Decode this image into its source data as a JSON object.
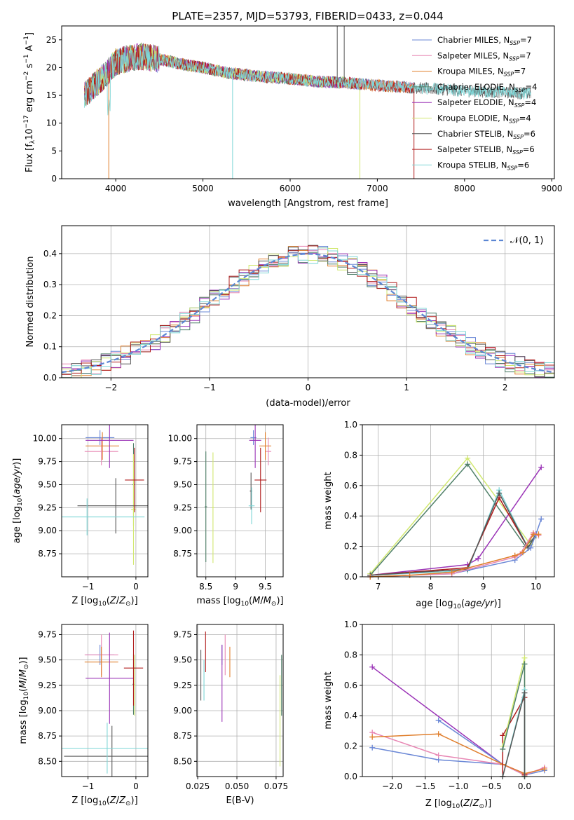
{
  "figure_title": "PLATE=2357, MJD=53793, FIBERID=0433, z=0.044",
  "colors": {
    "Chabrier MILES": "#6a87d6",
    "Salpeter MILES": "#e887b4",
    "Kroupa MILES": "#e07f2d",
    "Chabrier ELODIE": "#4f7f68",
    "Salpeter ELODIE": "#9b34b7",
    "Kroupa ELODIE": "#d1e870",
    "Chabrier STELIB": "#555555",
    "Salpeter STELIB": "#b01c1c",
    "Kroupa STELIB": "#7ed6d6",
    "normal": "#5b86d3"
  },
  "chart_data": [
    {
      "id": "spectrum",
      "type": "line",
      "title": "PLATE=2357, MJD=53793, FIBERID=0433, z=0.044",
      "xlabel": "wavelength [Angstrom, rest frame]",
      "ylabel": "Flux [f_λ 10^-17 erg cm^-2 s^-1 A^-1]",
      "xlim": [
        3380,
        9030
      ],
      "ylim": [
        0,
        27.5
      ],
      "xticks": [
        4000,
        5000,
        6000,
        7000,
        8000,
        9000
      ],
      "yticks": [
        0,
        5,
        10,
        15,
        20,
        25
      ],
      "grid": false,
      "legend_position": "upper right",
      "series": [
        {
          "name": "Chabrier MILES",
          "nssp": "7",
          "range": [
            3640,
            7420
          ]
        },
        {
          "name": "Salpeter MILES",
          "nssp": "7",
          "range": [
            3640,
            7420
          ]
        },
        {
          "name": "Kroupa MILES",
          "nssp": "7",
          "range": [
            3640,
            7420
          ]
        },
        {
          "name": "Chabrier ELODIE",
          "nssp": "4",
          "range": [
            3640,
            6800
          ]
        },
        {
          "name": "Salpeter ELODIE",
          "nssp": "4",
          "range": [
            3640,
            6800
          ]
        },
        {
          "name": "Kroupa ELODIE",
          "nssp": "4",
          "range": [
            3640,
            6800
          ]
        },
        {
          "name": "Chabrier STELIB",
          "nssp": "6",
          "range": [
            3640,
            8760
          ]
        },
        {
          "name": "Salpeter STELIB",
          "nssp": "6",
          "range": [
            3640,
            7420
          ]
        },
        {
          "name": "Kroupa STELIB",
          "nssp": "6",
          "range": [
            3640,
            8760
          ]
        }
      ],
      "continuum": {
        "x": [
          3640,
          3700,
          3800,
          3900,
          4000,
          4100,
          4300,
          4500,
          4800,
          5000,
          5300,
          5600,
          6000,
          6300,
          6600,
          7000,
          7500,
          8000,
          8500,
          8760
        ],
        "y": [
          15,
          16,
          17.5,
          19,
          21,
          21.5,
          22,
          21.5,
          20.5,
          20,
          19,
          18.5,
          18,
          17.5,
          17.3,
          16.8,
          16.3,
          15.8,
          15.5,
          15.3
        ]
      }
    },
    {
      "id": "residuals",
      "type": "histogram",
      "xlabel": "(data-model)/error",
      "ylabel": "Normed distribution",
      "xlim": [
        -2.5,
        2.5
      ],
      "ylim": [
        0,
        0.49
      ],
      "xticks": [
        -2,
        -1,
        0,
        1,
        2
      ],
      "yticks": [
        0.0,
        0.1,
        0.2,
        0.3,
        0.4
      ],
      "grid": true,
      "legend_label": "𝒩(0, 1)",
      "legend_position": "upper right",
      "bin_width": 0.1
    },
    {
      "id": "age_vs_Z",
      "type": "errorbar",
      "xlabel": "Z [log10(Z/Z⊙)]",
      "ylabel": "age [log10(age/yr)]",
      "xlim": [
        -1.55,
        0.25
      ],
      "ylim": [
        8.5,
        10.15
      ],
      "xticks": [
        -1,
        0
      ],
      "yticks": [
        8.75,
        9.0,
        9.25,
        9.5,
        9.75,
        10.0
      ],
      "grid": true,
      "points": [
        {
          "model": "Chabrier MILES",
          "x": -0.75,
          "xerr": 0.3,
          "y": 10.01,
          "yerr": 0.08
        },
        {
          "model": "Salpeter MILES",
          "x": -0.72,
          "xerr": 0.35,
          "y": 9.86,
          "yerr": 0.15
        },
        {
          "model": "Kroupa MILES",
          "x": -0.7,
          "xerr": 0.35,
          "y": 9.92,
          "yerr": 0.15
        },
        {
          "model": "Chabrier ELODIE",
          "x": -0.05,
          "xerr": 0.02,
          "y": 9.5,
          "yerr": 0.45
        },
        {
          "model": "Salpeter ELODIE",
          "x": -0.55,
          "xerr": 0.5,
          "y": 9.98,
          "yerr": 0.3
        },
        {
          "model": "Kroupa ELODIE",
          "x": -0.05,
          "xerr": 0.05,
          "y": 9.23,
          "yerr": 0.6
        },
        {
          "model": "Chabrier STELIB",
          "x": -0.42,
          "xerr": 0.8,
          "y": 9.27,
          "yerr": 0.3
        },
        {
          "model": "Salpeter STELIB",
          "x": -0.03,
          "xerr": 0.2,
          "y": 9.55,
          "yerr": 0.35
        },
        {
          "model": "Kroupa STELIB",
          "x": -1.02,
          "xerr": 1.2,
          "y": 9.15,
          "yerr": 0.2
        }
      ]
    },
    {
      "id": "age_vs_mass",
      "type": "errorbar",
      "xlabel": "mass [log10(M/M⊙)]",
      "ylabel": "",
      "xlim": [
        8.35,
        9.8
      ],
      "ylim": [
        8.5,
        10.15
      ],
      "xticks": [
        8.5,
        9.0,
        9.5
      ],
      "yticks": [
        8.75,
        9.0,
        9.25,
        9.5,
        9.75,
        10.0
      ],
      "grid": true,
      "points": [
        {
          "model": "Chabrier MILES",
          "x": 9.3,
          "xerr": 0.05,
          "y": 10.01,
          "yerr": 0.08
        },
        {
          "model": "Salpeter MILES",
          "x": 9.55,
          "xerr": 0.05,
          "y": 9.86,
          "yerr": 0.15
        },
        {
          "model": "Kroupa MILES",
          "x": 9.5,
          "xerr": 0.1,
          "y": 9.92,
          "yerr": 0.15
        },
        {
          "model": "Chabrier ELODIE",
          "x": 8.5,
          "xerr": 0.02,
          "y": 9.26,
          "yerr": 0.6
        },
        {
          "model": "Salpeter ELODIE",
          "x": 9.33,
          "xerr": 0.1,
          "y": 9.98,
          "yerr": 0.3
        },
        {
          "model": "Kroupa ELODIE",
          "x": 8.62,
          "xerr": 0.02,
          "y": 9.25,
          "yerr": 0.6
        },
        {
          "model": "Chabrier STELIB",
          "x": 9.26,
          "xerr": 0.02,
          "y": 9.43,
          "yerr": 0.2
        },
        {
          "model": "Salpeter STELIB",
          "x": 9.42,
          "xerr": 0.1,
          "y": 9.55,
          "yerr": 0.35
        },
        {
          "model": "Kroupa STELIB",
          "x": 9.27,
          "xerr": 0.05,
          "y": 9.27,
          "yerr": 0.2
        }
      ]
    },
    {
      "id": "mass_weight_vs_age",
      "type": "line",
      "xlabel": "age [log10(age/yr)]",
      "ylabel": "mass weight",
      "xlim": [
        6.7,
        10.35
      ],
      "ylim": [
        0,
        1
      ],
      "xticks": [
        7,
        8,
        9,
        10
      ],
      "yticks": [
        0.0,
        0.2,
        0.4,
        0.6,
        0.8,
        1.0
      ],
      "grid": true,
      "series": [
        {
          "name": "Kroupa ELODIE",
          "x": [
            6.85,
            8.7,
            9.9,
            10.0
          ],
          "y": [
            0.02,
            0.78,
            0.21,
            0.27
          ]
        },
        {
          "name": "Chabrier ELODIE",
          "x": [
            6.85,
            8.7,
            9.8,
            10.0
          ],
          "y": [
            0.01,
            0.74,
            0.2,
            0.27
          ]
        },
        {
          "name": "Salpeter ELODIE",
          "x": [
            6.85,
            8.7,
            8.9,
            10.1
          ],
          "y": [
            0.01,
            0.08,
            0.12,
            0.72
          ]
        },
        {
          "name": "Salpeter STELIB",
          "x": [
            6.85,
            8.7,
            9.3,
            9.85,
            10.0
          ],
          "y": [
            0.01,
            0.06,
            0.52,
            0.19,
            0.28
          ]
        },
        {
          "name": "Kroupa STELIB",
          "x": [
            6.85,
            8.7,
            9.3,
            9.85,
            10.0
          ],
          "y": [
            0.01,
            0.04,
            0.57,
            0.19,
            0.28
          ]
        },
        {
          "name": "Chabrier STELIB",
          "x": [
            6.85,
            8.7,
            9.3,
            9.85,
            10.0
          ],
          "y": [
            0.01,
            0.05,
            0.55,
            0.19,
            0.28
          ]
        },
        {
          "name": "Chabrier MILES",
          "x": [
            6.85,
            7.6,
            8.4,
            9.6,
            9.9,
            10.0,
            10.1
          ],
          "y": [
            0.0,
            0.01,
            0.02,
            0.11,
            0.19,
            0.28,
            0.38
          ]
        },
        {
          "name": "Salpeter MILES",
          "x": [
            6.85,
            7.6,
            8.4,
            9.6,
            9.7,
            9.95,
            10.05
          ],
          "y": [
            0.0,
            0.01,
            0.02,
            0.13,
            0.15,
            0.29,
            0.27
          ]
        },
        {
          "name": "Kroupa MILES",
          "x": [
            6.85,
            7.6,
            8.4,
            9.6,
            9.75,
            9.95,
            10.05
          ],
          "y": [
            0.0,
            0.01,
            0.03,
            0.14,
            0.16,
            0.28,
            0.28
          ]
        }
      ]
    },
    {
      "id": "mass_vs_Z",
      "type": "errorbar",
      "xlabel": "Z [log10(Z/Z⊙)]",
      "ylabel": "mass [log10(M/M⊙)]",
      "xlim": [
        -1.55,
        0.25
      ],
      "ylim": [
        8.35,
        9.85
      ],
      "xticks": [
        -1,
        0
      ],
      "yticks": [
        8.5,
        8.75,
        9.0,
        9.25,
        9.5,
        9.75
      ],
      "grid": true,
      "points": [
        {
          "model": "Chabrier MILES",
          "x": -0.75,
          "xerr": 0.3,
          "y": 9.55,
          "yerr": 0.1
        },
        {
          "model": "Salpeter MILES",
          "x": -0.72,
          "xerr": 0.35,
          "y": 9.55,
          "yerr": 0.2
        },
        {
          "model": "Kroupa MILES",
          "x": -0.72,
          "xerr": 0.35,
          "y": 9.48,
          "yerr": 0.15
        },
        {
          "model": "Chabrier ELODIE",
          "x": -0.05,
          "xerr": 0.02,
          "y": 9.26,
          "yerr": 0.3
        },
        {
          "model": "Salpeter ELODIE",
          "x": -0.55,
          "xerr": 0.5,
          "y": 9.32,
          "yerr": 0.45
        },
        {
          "model": "Kroupa ELODIE",
          "x": -0.03,
          "xerr": 0.02,
          "y": 9.25,
          "yerr": 0.3
        },
        {
          "model": "Chabrier STELIB",
          "x": -0.5,
          "xerr": 1.0,
          "y": 8.55,
          "yerr": 0.3
        },
        {
          "model": "Salpeter STELIB",
          "x": -0.05,
          "xerr": 0.2,
          "y": 9.42,
          "yerr": 0.37
        },
        {
          "model": "Kroupa STELIB",
          "x": -0.6,
          "xerr": 1.25,
          "y": 8.63,
          "yerr": 0.25
        }
      ]
    },
    {
      "id": "mass_vs_EBV",
      "type": "errorbar",
      "xlabel": "E(B-V)",
      "ylabel": "",
      "xlim": [
        0.0245,
        0.0795
      ],
      "ylim": [
        8.35,
        9.85
      ],
      "xticks": [
        0.025,
        0.05,
        0.075
      ],
      "xticklabels": [
        "0.025",
        "0.050",
        "0.075"
      ],
      "yticks": [
        8.5,
        8.75,
        9.0,
        9.25,
        9.5,
        9.75
      ],
      "grid": true,
      "points": [
        {
          "model": "Chabrier MILES",
          "x": 0.0405,
          "y": 9.55,
          "yerr": 0.1
        },
        {
          "model": "Salpeter MILES",
          "x": 0.0425,
          "y": 9.55,
          "yerr": 0.2
        },
        {
          "model": "Kroupa MILES",
          "x": 0.0455,
          "y": 9.48,
          "yerr": 0.15
        },
        {
          "model": "Chabrier ELODIE",
          "x": 0.0785,
          "y": 9.25,
          "yerr": 0.3
        },
        {
          "model": "Salpeter ELODIE",
          "x": 0.0405,
          "y": 9.27,
          "yerr": 0.38
        },
        {
          "model": "Kroupa ELODIE",
          "x": 0.0775,
          "y": 8.9,
          "yerr": 0.45
        },
        {
          "model": "Chabrier STELIB",
          "x": 0.027,
          "y": 9.35,
          "yerr": 0.25
        },
        {
          "model": "Salpeter STELIB",
          "x": 0.03,
          "y": 9.58,
          "yerr": 0.2
        },
        {
          "model": "Kroupa STELIB",
          "x": 0.029,
          "y": 9.3,
          "yerr": 0.2
        }
      ]
    },
    {
      "id": "mass_weight_vs_Z",
      "type": "line",
      "xlabel": "Z [log10(Z/Z⊙)]",
      "ylabel": "mass weight",
      "xlim": [
        -2.45,
        0.45
      ],
      "ylim": [
        0,
        1
      ],
      "xticks": [
        -2.0,
        -1.5,
        -1.0,
        -0.5,
        0.0
      ],
      "xticklabels": [
        "−2.0",
        "−1.5",
        "−1.0",
        "−0.5",
        "0.0"
      ],
      "yticks": [
        0.0,
        0.2,
        0.4,
        0.6,
        0.8,
        1.0
      ],
      "grid": true,
      "series": [
        {
          "name": "Salpeter ELODIE",
          "x": [
            -2.3,
            -0.33,
            0.0
          ],
          "y": [
            0.72,
            0.08,
            0.02
          ]
        },
        {
          "name": "Chabrier MILES",
          "x": [
            -2.3,
            -1.3,
            -0.33,
            0.0,
            0.3
          ],
          "y": [
            0.19,
            0.11,
            0.08,
            0.01,
            0.04
          ]
        },
        {
          "name": "Chabrier MILES",
          "x": [
            -1.3,
            -0.33
          ],
          "y": [
            0.37,
            0.08
          ]
        },
        {
          "name": "Salpeter MILES",
          "x": [
            -2.3,
            -1.3,
            -0.33,
            0.0,
            0.3
          ],
          "y": [
            0.29,
            0.14,
            0.08,
            0.01,
            0.06
          ]
        },
        {
          "name": "Kroupa MILES",
          "x": [
            -2.3,
            -1.3,
            -0.33,
            0.0,
            0.3
          ],
          "y": [
            0.26,
            0.28,
            0.08,
            0.02,
            0.05
          ]
        },
        {
          "name": "Salpeter STELIB",
          "x": [
            -0.33,
            -0.33,
            0.0,
            0.0
          ],
          "y": [
            0.0,
            0.27,
            0.52,
            0.01
          ]
        },
        {
          "name": "Kroupa ELODIE",
          "x": [
            -0.33,
            0.0,
            0.0
          ],
          "y": [
            0.2,
            0.78,
            0.0
          ]
        },
        {
          "name": "Chabrier ELODIE",
          "x": [
            -0.33,
            0.0,
            0.0
          ],
          "y": [
            0.18,
            0.74,
            0.0
          ]
        },
        {
          "name": "Kroupa STELIB",
          "x": [
            -0.33,
            0.0,
            0.0
          ],
          "y": [
            0.0,
            0.57,
            0.0
          ]
        },
        {
          "name": "Chabrier STELIB",
          "x": [
            -0.33,
            0.0,
            0.0
          ],
          "y": [
            0.0,
            0.55,
            0.0
          ]
        }
      ]
    }
  ]
}
